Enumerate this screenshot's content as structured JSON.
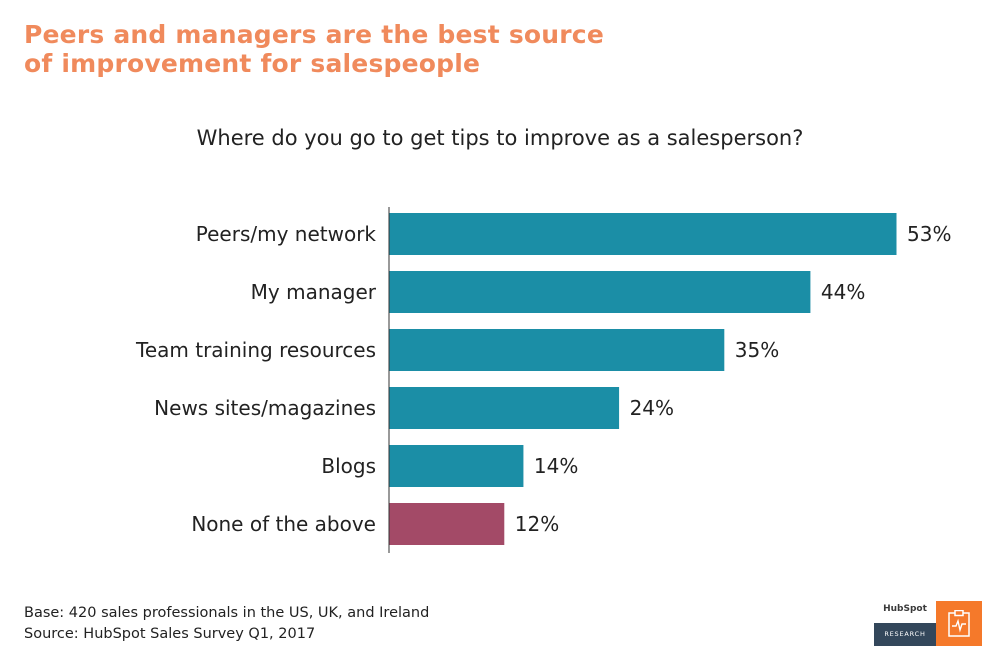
{
  "header": {
    "title_line1": "Peers and managers are the best source",
    "title_line2": "of improvement for salespeople",
    "question": "Where do you go to get tips to improve as a salesperson?"
  },
  "chart_data": {
    "type": "bar",
    "orientation": "horizontal",
    "categories": [
      "Peers/my network",
      "My manager",
      "Team training resources",
      "News sites/magazines",
      "Blogs",
      "None of the above"
    ],
    "values": [
      53,
      44,
      35,
      24,
      14,
      12
    ],
    "value_labels": [
      "53%",
      "44%",
      "35%",
      "24%",
      "14%",
      "12%"
    ],
    "unit": "%",
    "colors": [
      "#1b8ea6",
      "#1b8ea6",
      "#1b8ea6",
      "#1b8ea6",
      "#1b8ea6",
      "#a34a67"
    ],
    "xlim": [
      0,
      53
    ],
    "grid": false,
    "legend": "none"
  },
  "footnote": {
    "base": "Base: 420 sales professionals in the US, UK, and Ireland",
    "source": "Source: HubSpot Sales Survey Q1, 2017"
  },
  "badge": {
    "brand": "HubSpot",
    "label": "RESEARCH",
    "icon": "clipboard-chart-icon"
  }
}
